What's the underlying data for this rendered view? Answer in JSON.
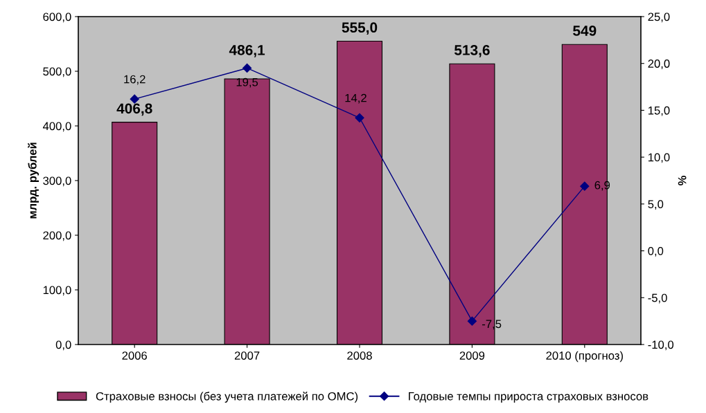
{
  "chart_data": {
    "type": "bar",
    "ylabel": "млрд. рублей",
    "y2label": "%",
    "categories": [
      "2006",
      "2007",
      "2008",
      "2009",
      "2010 (прогноз)"
    ],
    "series": [
      {
        "name": "Страховые взносы (без учета платежей по ОМС)",
        "color": "#993366",
        "values": [
          406.8,
          486.1,
          555.0,
          513.6,
          549
        ],
        "value_labels": [
          "406,8",
          "486,1",
          "555,0",
          "513,6",
          "549"
        ]
      },
      {
        "name": "Годовые темпы прироста страховых взносов",
        "type": "line",
        "axis": "y2",
        "color": "#000080",
        "marker": "diamond",
        "values": [
          16.2,
          19.5,
          14.2,
          -7.5,
          6.9
        ],
        "value_labels": [
          "16,2",
          "19,5",
          "14,2",
          "-7,5",
          "6,9"
        ]
      }
    ],
    "ylim": [
      0,
      600
    ],
    "yticks": [
      {
        "value": 0,
        "label": "0,0"
      },
      {
        "value": 100,
        "label": "100,0"
      },
      {
        "value": 200,
        "label": "200,0"
      },
      {
        "value": 300,
        "label": "300,0"
      },
      {
        "value": 400,
        "label": "400,0"
      },
      {
        "value": 500,
        "label": "500,0"
      },
      {
        "value": 600,
        "label": "600,0"
      }
    ],
    "y2lim": [
      -10,
      25
    ],
    "y2ticks": [
      {
        "value": -10,
        "label": "-10,0"
      },
      {
        "value": -5,
        "label": "-5,0"
      },
      {
        "value": 0,
        "label": "0,0"
      },
      {
        "value": 5,
        "label": "5,0"
      },
      {
        "value": 10,
        "label": "10,0"
      },
      {
        "value": 15,
        "label": "15,0"
      },
      {
        "value": 20,
        "label": "20,0"
      },
      {
        "value": 25,
        "label": "25,0"
      }
    ],
    "grid": false,
    "legend": "bottom"
  }
}
